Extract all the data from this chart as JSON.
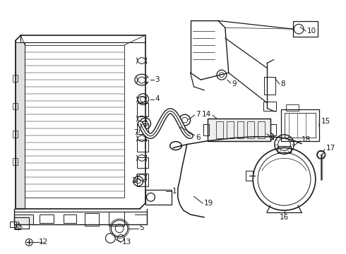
{
  "background_color": "#ffffff",
  "line_color": "#1a1a1a",
  "fig_width": 4.9,
  "fig_height": 3.6,
  "dpi": 100,
  "font_size": 7.5
}
